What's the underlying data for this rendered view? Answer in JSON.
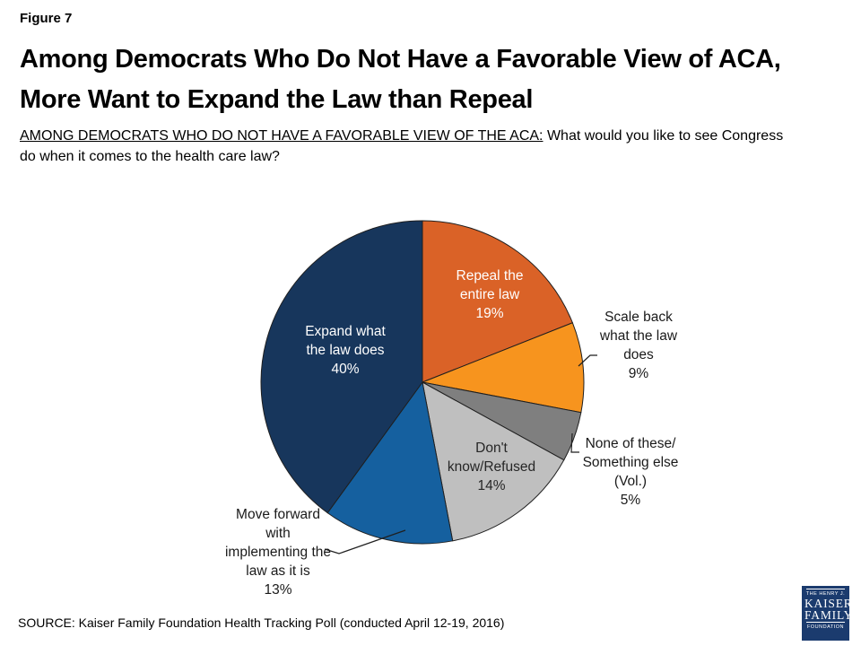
{
  "figure_label": "Figure 7",
  "title": {
    "line1": "Among Democrats Who Do Not Have a Favorable View of ACA,",
    "line2": "More Want to Expand the Law than Repeal"
  },
  "subtitle": {
    "underlined": "AMONG DEMOCRATS WHO DO NOT HAVE A FAVORABLE VIEW OF THE ACA:",
    "rest_line1": "What would you like to see Congress",
    "rest_line2": "do when it comes to the health care law?"
  },
  "source": "SOURCE: Kaiser Family Foundation Health Tracking Poll (conducted April 12-19, 2016)",
  "logo": {
    "line1": "THE HENRY J.",
    "line2": "KAISER",
    "line3": "FAMILY",
    "line4": "FOUNDATION"
  },
  "chart_data": {
    "type": "pie",
    "title": "",
    "start_angle_deg": 0,
    "direction": "clockwise",
    "legend": "none",
    "slices": [
      {
        "id": "repeal",
        "label": "Repeal the entire law",
        "value": 19,
        "pct_label": "19%",
        "color": "#DA6227",
        "label_placement": "inside",
        "lines": [
          "Repeal the",
          "entire law"
        ]
      },
      {
        "id": "scale-back",
        "label": "Scale back what the law does",
        "value": 9,
        "pct_label": "9%",
        "color": "#F7941E",
        "label_placement": "outside",
        "lines": [
          "Scale back",
          "what the law",
          "does"
        ]
      },
      {
        "id": "none-of-these",
        "label": "None of these/ Something else (Vol.)",
        "value": 5,
        "pct_label": "5%",
        "color": "#7F7F7F",
        "label_placement": "outside",
        "lines": [
          "None of these/",
          "Something else",
          "(Vol.)"
        ]
      },
      {
        "id": "dont-know",
        "label": "Don't know/Refused",
        "value": 14,
        "pct_label": "14%",
        "color": "#BFBFBF",
        "label_placement": "inside",
        "lines": [
          "Don't",
          "know/Refused"
        ]
      },
      {
        "id": "move-forward",
        "label": "Move forward with implementing the law as it is",
        "value": 13,
        "pct_label": "13%",
        "color": "#15609F",
        "label_placement": "outside",
        "lines": [
          "Move forward",
          "with",
          "implementing the",
          "law as it is"
        ]
      },
      {
        "id": "expand",
        "label": "Expand what the law does",
        "value": 40,
        "pct_label": "40%",
        "color": "#17365C",
        "label_placement": "inside",
        "lines": [
          "Expand what",
          "the law does"
        ]
      }
    ]
  }
}
